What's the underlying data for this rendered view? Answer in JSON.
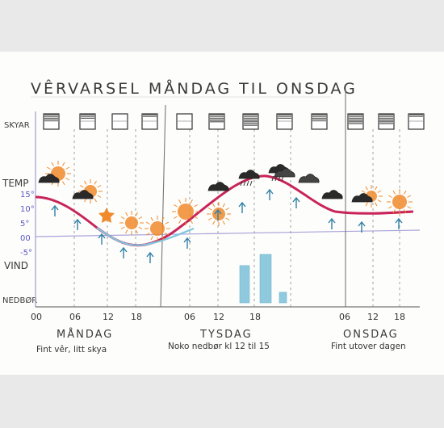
{
  "title": "VÊRVARSEL MÅNDAG TIL ONSDAG",
  "row_labels": {
    "sky": "SKYAR",
    "temp": "TEMP",
    "wind": "VIND",
    "precip": "NEDBØR"
  },
  "temp_ticks": [
    "15°",
    "10°",
    "5°",
    "00",
    "-5°"
  ],
  "time_labels": [
    "00",
    "06",
    "12",
    "18",
    "06",
    "12",
    "18",
    "06",
    "12",
    "18"
  ],
  "days": [
    {
      "name": "MÅNDAG",
      "summary": "Fint vêr, litt skya"
    },
    {
      "name": "TYSDAG",
      "summary": "Noko nedbør kl 12 til 15"
    },
    {
      "name": "ONSDAG",
      "summary": "Fint utover dagen"
    }
  ],
  "colors": {
    "temp_curve": "#c8245a",
    "wind_line": "#a9a3d9",
    "sun": "#f08a2a",
    "wind_arrows": "#2f7fa6",
    "precip": "#7cc0d8"
  },
  "precip_bars": [
    0.6,
    0.78,
    0.17
  ]
}
